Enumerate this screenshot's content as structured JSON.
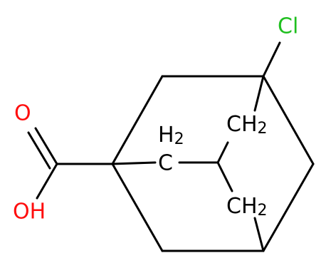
{
  "atoms": [
    {
      "label": "Cl"
    },
    {
      "label": "O"
    },
    {
      "label": "OH"
    },
    {
      "label": "CH",
      "sub": "2"
    },
    {
      "pre": "H",
      "sub": "2",
      "label": "C"
    },
    {
      "label": "CH",
      "sub": "2"
    }
  ]
}
